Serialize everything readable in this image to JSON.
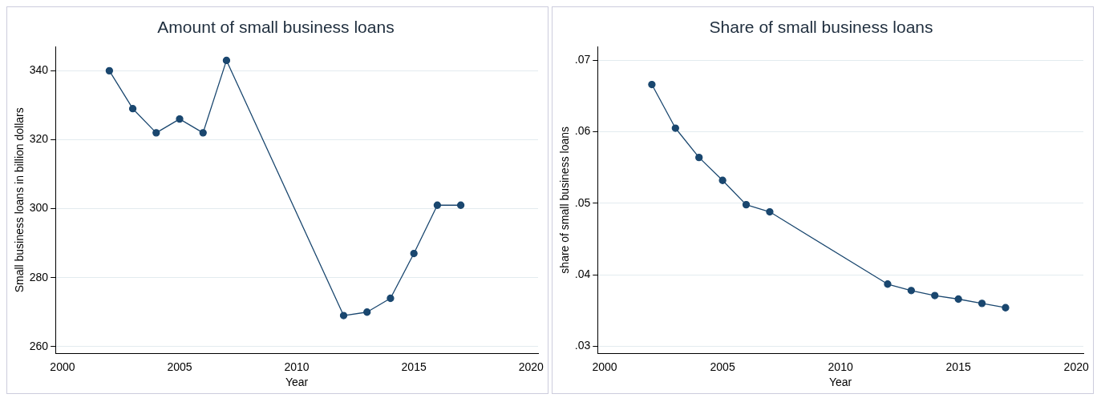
{
  "chart_data": [
    {
      "type": "line",
      "title": "Amount of small business loans",
      "xlabel": "Year",
      "ylabel": "Small business loans in billion dollars",
      "x": [
        2002,
        2003,
        2004,
        2005,
        2006,
        2007,
        2012,
        2013,
        2014,
        2015,
        2016,
        2017
      ],
      "values": [
        340,
        329,
        322,
        326,
        322,
        343,
        269,
        270,
        274,
        287,
        301,
        301
      ],
      "color": "#1a476f",
      "marker": "circle",
      "xlim": [
        1999.7,
        2020.3
      ],
      "xticks": [
        2000,
        2005,
        2010,
        2015,
        2020
      ],
      "ylim": [
        258,
        347
      ],
      "yticks": [
        260,
        280,
        300,
        320,
        340
      ],
      "grid": "y"
    },
    {
      "type": "line",
      "title": "Share of small business loans",
      "xlabel": "Year",
      "ylabel": "share of small business loans",
      "x": [
        2002,
        2003,
        2004,
        2005,
        2006,
        2007,
        2012,
        2013,
        2014,
        2015,
        2016,
        2017
      ],
      "values": [
        0.0666,
        0.0605,
        0.0564,
        0.0532,
        0.0498,
        0.0488,
        0.0387,
        0.0378,
        0.0371,
        0.0366,
        0.036,
        0.0354
      ],
      "color": "#1a476f",
      "marker": "circle",
      "xlim": [
        1999.7,
        2020.3
      ],
      "xticks": [
        2000,
        2005,
        2010,
        2015,
        2020
      ],
      "ylim": [
        0.029,
        0.0719
      ],
      "yticks": [
        {
          "value": 0.03,
          "label": ".03"
        },
        {
          "value": 0.04,
          "label": ".04"
        },
        {
          "value": 0.05,
          "label": ".05"
        },
        {
          "value": 0.06,
          "label": ".06"
        },
        {
          "value": 0.07,
          "label": ".07"
        }
      ],
      "grid": "y"
    }
  ]
}
